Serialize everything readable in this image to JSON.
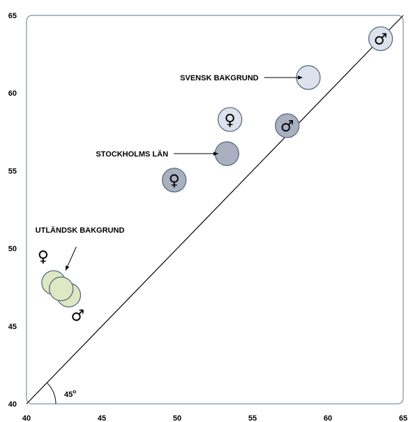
{
  "chart_data": {
    "type": "scatter",
    "xlim": [
      40,
      65
    ],
    "ylim": [
      40,
      65
    ],
    "xticks": [
      40,
      45,
      50,
      55,
      60,
      65
    ],
    "yticks": [
      40,
      45,
      50,
      55,
      60,
      65
    ],
    "grid": false,
    "reference_line": {
      "from": [
        40,
        40
      ],
      "to": [
        65,
        65
      ],
      "label": "45",
      "label_superscript": "o"
    },
    "colors": {
      "svensk": "#dde2ec",
      "stockholm": "#a9b0c0",
      "utlandsk": "#dfe8c4",
      "outline": "#596a80"
    },
    "series": [
      {
        "name": "SVENSK BAKGRUND",
        "color": "#dde2ec",
        "points": [
          {
            "x": 58.7,
            "y": 61.0,
            "symbol": ""
          },
          {
            "x": 53.5,
            "y": 58.3,
            "symbol": "♀"
          },
          {
            "x": 63.5,
            "y": 63.5,
            "symbol": "♂"
          }
        ]
      },
      {
        "name": "STOCKHOLMS LÄN",
        "color": "#a9b0c0",
        "points": [
          {
            "x": 53.3,
            "y": 56.1,
            "symbol": ""
          },
          {
            "x": 49.8,
            "y": 54.4,
            "symbol": "♀"
          },
          {
            "x": 57.3,
            "y": 57.9,
            "symbol": "♂"
          }
        ]
      },
      {
        "name": "UTLÄNDSK BAKGRUND",
        "color": "#dfe8c4",
        "points": [
          {
            "x": 41.8,
            "y": 47.8,
            "symbol": ""
          },
          {
            "x": 42.8,
            "y": 47.0,
            "symbol": ""
          },
          {
            "x": 42.3,
            "y": 47.4,
            "symbol": ""
          }
        ]
      }
    ],
    "annotations": [
      {
        "text": "SVENSK BAKGRUND",
        "x": 55.4,
        "y": 61.0,
        "arrow_to": [
          58.3,
          61.0
        ]
      },
      {
        "text": "STOCKHOLMS LÄN",
        "x": 49.4,
        "y": 56.1,
        "arrow_to": [
          52.7,
          56.1
        ]
      },
      {
        "text": "UTLÄNDSK BAKGRUND",
        "x": 46.5,
        "y": 51.2,
        "arrow_from": [
          43.3,
          50.1
        ],
        "arrow_to": [
          42.6,
          48.6
        ]
      }
    ],
    "free_symbols": [
      {
        "symbol": "♀",
        "x": 41.1,
        "y": 49.5
      },
      {
        "symbol": "♂",
        "x": 43.4,
        "y": 45.7
      }
    ]
  }
}
